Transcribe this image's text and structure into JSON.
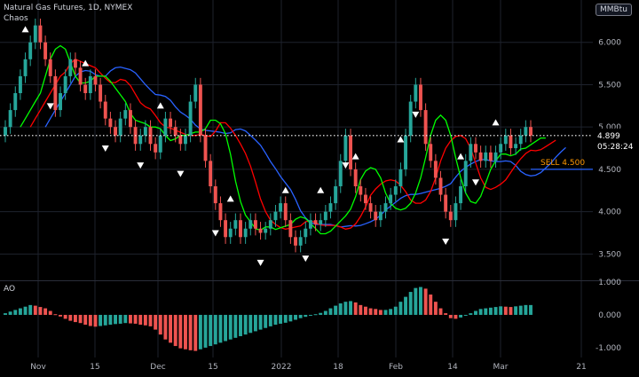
{
  "header": {
    "title": "Natural Gas Futures, 1D, NYMEX",
    "indicator": "Chaos",
    "unit": "MMBtu"
  },
  "price_label": {
    "value": "4.899",
    "countdown": "05:28:24"
  },
  "sell_label": {
    "text": "SELL 4.500",
    "value": 4.5
  },
  "ao_label": "AO",
  "colors": {
    "up": "#26a69a",
    "down": "#ef5350",
    "blue": "#2962ff",
    "red": "#ff0000",
    "green": "#00ff00",
    "sell": "#ff9800",
    "grid": "#1e222d"
  },
  "chart_data": [
    {
      "type": "candlestick",
      "title": "Natural Gas Futures, 1D, NYMEX",
      "x_ticks": [
        "Nov",
        "15",
        "Dec",
        "15",
        "2022",
        "18",
        "Feb",
        "14",
        "Mar",
        "21"
      ],
      "y_ticks": [
        "6.000",
        "5.500",
        "5.000",
        "4.500",
        "4.000",
        "3.500"
      ],
      "ylim": [
        3.2,
        6.5
      ],
      "close": [
        5.0,
        5.2,
        5.4,
        5.6,
        5.8,
        6.0,
        6.2,
        6.0,
        5.8,
        5.6,
        5.2,
        5.4,
        5.6,
        5.8,
        5.7,
        5.5,
        5.4,
        5.6,
        5.5,
        5.3,
        5.1,
        5.0,
        4.9,
        5.1,
        5.2,
        5.0,
        4.8,
        4.9,
        5.0,
        4.8,
        4.7,
        4.9,
        5.1,
        5.0,
        4.9,
        4.8,
        4.9,
        5.3,
        5.5,
        4.9,
        4.6,
        4.3,
        4.1,
        3.9,
        3.7,
        3.8,
        3.9,
        3.7,
        3.8,
        3.9,
        3.8,
        3.75,
        3.8,
        3.9,
        4.0,
        4.1,
        3.9,
        3.7,
        3.6,
        3.7,
        3.8,
        3.9,
        3.85,
        3.9,
        4.0,
        4.1,
        4.3,
        4.6,
        4.9,
        4.5,
        4.3,
        4.2,
        4.1,
        4.0,
        3.9,
        4.0,
        4.1,
        4.2,
        4.3,
        4.5,
        4.9,
        5.3,
        5.5,
        5.2,
        4.8,
        4.6,
        4.4,
        4.2,
        4.0,
        3.9,
        4.1,
        4.3,
        4.6,
        4.8,
        4.7,
        4.6,
        4.7,
        4.6,
        4.7,
        4.8,
        4.9,
        4.75,
        4.8,
        4.9,
        5.0,
        4.9
      ],
      "oscillator": {
        "name": "AO",
        "y_ticks": [
          "1.000",
          "0.000",
          "-1.000"
        ],
        "ylim": [
          -1.3,
          1.0
        ],
        "values": [
          0.05,
          0.1,
          0.15,
          0.2,
          0.25,
          0.3,
          0.28,
          0.24,
          0.2,
          0.12,
          0.02,
          -0.05,
          -0.12,
          -0.18,
          -0.22,
          -0.25,
          -0.3,
          -0.34,
          -0.36,
          -0.34,
          -0.32,
          -0.3,
          -0.28,
          -0.27,
          -0.25,
          -0.26,
          -0.27,
          -0.3,
          -0.32,
          -0.35,
          -0.45,
          -0.6,
          -0.75,
          -0.85,
          -0.95,
          -1.02,
          -1.05,
          -1.08,
          -1.1,
          -1.05,
          -1.0,
          -0.95,
          -0.9,
          -0.85,
          -0.8,
          -0.75,
          -0.7,
          -0.65,
          -0.6,
          -0.55,
          -0.5,
          -0.45,
          -0.4,
          -0.35,
          -0.3,
          -0.27,
          -0.24,
          -0.2,
          -0.15,
          -0.1,
          -0.06,
          -0.02,
          0.02,
          0.06,
          0.12,
          0.2,
          0.28,
          0.35,
          0.4,
          0.42,
          0.38,
          0.3,
          0.25,
          0.2,
          0.18,
          0.15,
          0.15,
          0.18,
          0.25,
          0.4,
          0.55,
          0.7,
          0.82,
          0.85,
          0.8,
          0.62,
          0.4,
          0.2,
          0.05,
          -0.1,
          -0.12,
          -0.08,
          -0.02,
          0.05,
          0.12,
          0.18,
          0.2,
          0.22,
          0.24,
          0.26,
          0.25,
          0.24,
          0.26,
          0.28,
          0.3,
          0.3
        ]
      }
    }
  ]
}
